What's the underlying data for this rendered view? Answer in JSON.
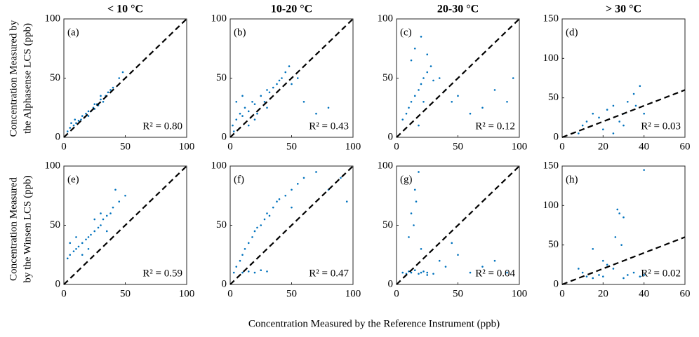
{
  "figure": {
    "x_label": "Concentration Measured by the Reference Instrument (ppb)",
    "y_labels": [
      [
        "Concentration Measured by",
        "the Alphasense LCS (ppb)"
      ],
      [
        "Concentration Measured",
        "by the Winsen LCS (ppb)"
      ]
    ]
  },
  "chart_data": [
    {
      "type": "scatter",
      "title": "< 10 °C",
      "panel": "(a)",
      "annotation": "R² = 0.80",
      "color": "#0072bd",
      "x": [
        5,
        8,
        10,
        12,
        14,
        15,
        17,
        18,
        20,
        22,
        24,
        25,
        27,
        28,
        30,
        32,
        34,
        36,
        38,
        40,
        45,
        48,
        3,
        6,
        9,
        20,
        25,
        30
      ],
      "y": [
        8,
        10,
        12,
        14,
        15,
        18,
        17,
        20,
        22,
        22,
        25,
        24,
        28,
        27,
        32,
        30,
        35,
        38,
        40,
        42,
        50,
        55,
        5,
        12,
        15,
        18,
        28,
        35
      ],
      "xlim": [
        0,
        100
      ],
      "ylim": [
        0,
        100
      ],
      "xticks": [
        0,
        50,
        100
      ],
      "yticks": [
        0,
        50,
        100
      ]
    },
    {
      "type": "scatter",
      "title": "10-20 °C",
      "panel": "(b)",
      "annotation": "R² = 0.43",
      "color": "#0072bd",
      "x": [
        2,
        5,
        8,
        10,
        12,
        15,
        18,
        20,
        22,
        25,
        28,
        30,
        32,
        35,
        38,
        40,
        42,
        45,
        48,
        50,
        5,
        10,
        15,
        60,
        70,
        80,
        55,
        3,
        20,
        30
      ],
      "y": [
        10,
        15,
        20,
        18,
        25,
        22,
        30,
        28,
        20,
        35,
        30,
        40,
        38,
        42,
        45,
        48,
        50,
        55,
        60,
        45,
        30,
        35,
        10,
        30,
        20,
        25,
        50,
        5,
        15,
        25
      ],
      "xlim": [
        0,
        100
      ],
      "ylim": [
        0,
        100
      ],
      "xticks": [
        0,
        50,
        100
      ],
      "yticks": [
        0,
        50,
        100
      ]
    },
    {
      "type": "scatter",
      "title": "20-30 °C",
      "panel": "(c)",
      "annotation": "R² = 0.12",
      "color": "#0072bd",
      "x": [
        5,
        8,
        10,
        12,
        15,
        18,
        20,
        22,
        25,
        28,
        30,
        35,
        40,
        45,
        50,
        60,
        70,
        80,
        90,
        95,
        15,
        20,
        25,
        12,
        18,
        22
      ],
      "y": [
        15,
        20,
        25,
        30,
        35,
        40,
        45,
        50,
        55,
        60,
        48,
        50,
        40,
        30,
        35,
        20,
        25,
        40,
        30,
        50,
        75,
        85,
        70,
        65,
        10,
        30
      ],
      "xlim": [
        0,
        100
      ],
      "ylim": [
        0,
        100
      ],
      "xticks": [
        0,
        50,
        100
      ],
      "yticks": [
        0,
        50,
        100
      ]
    },
    {
      "type": "scatter",
      "title": "> 30 °C",
      "panel": "(d)",
      "annotation": "R² = 0.03",
      "color": "#0072bd",
      "x": [
        8,
        10,
        12,
        15,
        18,
        20,
        22,
        25,
        28,
        30,
        32,
        35,
        38,
        40,
        25,
        30,
        36
      ],
      "y": [
        5,
        15,
        20,
        30,
        25,
        10,
        35,
        40,
        20,
        30,
        45,
        55,
        65,
        30,
        5,
        15,
        40
      ],
      "xlim": [
        0,
        60
      ],
      "ylim": [
        0,
        150
      ],
      "xticks": [
        0,
        20,
        40,
        60
      ],
      "yticks": [
        0,
        50,
        100,
        150
      ]
    },
    {
      "type": "scatter",
      "panel": "(e)",
      "annotation": "R² = 0.59",
      "color": "#0072bd",
      "x": [
        3,
        5,
        8,
        10,
        12,
        15,
        18,
        20,
        22,
        25,
        28,
        30,
        32,
        35,
        38,
        40,
        45,
        50,
        5,
        10,
        15,
        20,
        25,
        30,
        35,
        42
      ],
      "y": [
        22,
        25,
        28,
        30,
        32,
        35,
        38,
        40,
        42,
        45,
        48,
        50,
        55,
        58,
        60,
        65,
        70,
        75,
        35,
        40,
        25,
        30,
        55,
        60,
        45,
        80
      ],
      "xlim": [
        0,
        100
      ],
      "ylim": [
        0,
        100
      ],
      "xticks": [
        0,
        50,
        100
      ],
      "yticks": [
        0,
        50,
        100
      ]
    },
    {
      "type": "scatter",
      "panel": "(f)",
      "annotation": "R² = 0.47",
      "color": "#0072bd",
      "x": [
        3,
        5,
        8,
        10,
        12,
        15,
        18,
        20,
        22,
        25,
        28,
        30,
        32,
        35,
        38,
        40,
        45,
        50,
        55,
        60,
        70,
        80,
        90,
        95,
        10,
        15,
        20,
        25,
        30,
        50
      ],
      "y": [
        10,
        15,
        20,
        25,
        30,
        35,
        40,
        45,
        48,
        50,
        55,
        60,
        58,
        65,
        70,
        72,
        75,
        80,
        85,
        90,
        95,
        80,
        90,
        70,
        10,
        11,
        10,
        12,
        11,
        65
      ],
      "xlim": [
        0,
        100
      ],
      "ylim": [
        0,
        100
      ],
      "xticks": [
        0,
        50,
        100
      ],
      "yticks": [
        0,
        50,
        100
      ]
    },
    {
      "type": "scatter",
      "panel": "(g)",
      "annotation": "R² = 0.04",
      "color": "#0072bd",
      "x": [
        5,
        8,
        10,
        12,
        15,
        18,
        20,
        22,
        25,
        30,
        35,
        40,
        50,
        60,
        70,
        80,
        90,
        10,
        12,
        15,
        18,
        20,
        14,
        16,
        25,
        45
      ],
      "y": [
        10,
        9,
        11,
        10,
        12,
        9,
        10,
        11,
        10,
        9,
        20,
        15,
        25,
        10,
        15,
        20,
        10,
        40,
        60,
        80,
        95,
        30,
        50,
        70,
        8,
        35
      ],
      "xlim": [
        0,
        100
      ],
      "ylim": [
        0,
        100
      ],
      "xticks": [
        0,
        50,
        100
      ],
      "yticks": [
        0,
        50,
        100
      ]
    },
    {
      "type": "scatter",
      "panel": "(h)",
      "annotation": "R² = 0.02",
      "color": "#0072bd",
      "x": [
        8,
        10,
        12,
        15,
        18,
        20,
        22,
        25,
        27,
        28,
        30,
        32,
        35,
        38,
        40,
        29,
        30,
        26,
        40,
        15,
        20
      ],
      "y": [
        20,
        15,
        10,
        8,
        12,
        10,
        25,
        20,
        95,
        90,
        85,
        12,
        15,
        10,
        145,
        50,
        8,
        60,
        12,
        45,
        30
      ],
      "xlim": [
        0,
        60
      ],
      "ylim": [
        0,
        150
      ],
      "xticks": [
        0,
        20,
        40,
        60
      ],
      "yticks": [
        0,
        50,
        100,
        150
      ]
    }
  ]
}
